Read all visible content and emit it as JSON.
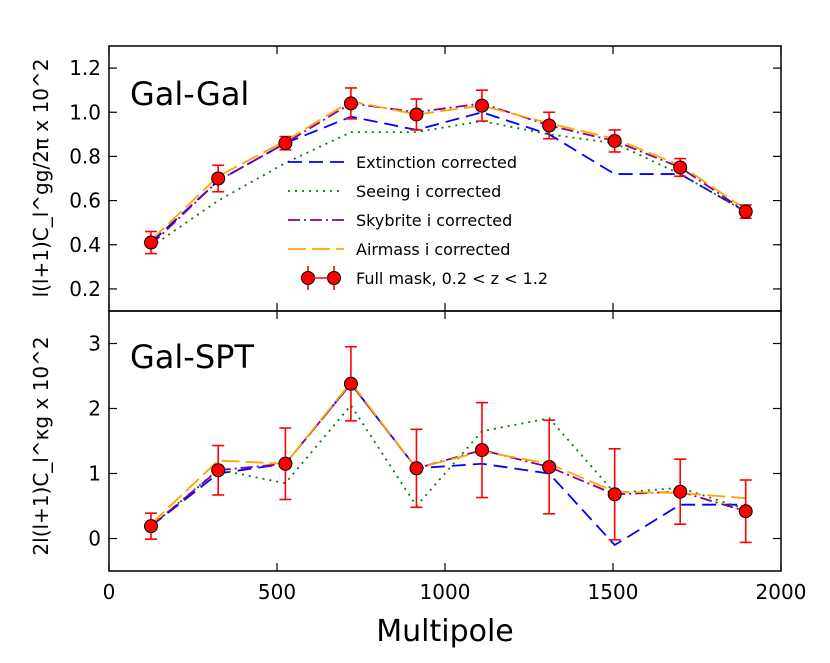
{
  "chart_data": [
    {
      "type": "line",
      "panel_label": "Gal-Gal",
      "ylabel": "l(l+1)C_l^gg/2π x 10^2",
      "xlabel": "",
      "xlim": [
        0,
        2000
      ],
      "ylim": [
        0.1,
        1.3
      ],
      "yticks": [
        0.2,
        0.4,
        0.6,
        0.8,
        1.0,
        1.2
      ],
      "yticklabels": [
        "0.2",
        "0.4",
        "0.6",
        "0.8",
        "1.0",
        "1.2"
      ],
      "legend_position": "lower-right",
      "x": [
        125,
        325,
        525,
        720,
        915,
        1110,
        1310,
        1505,
        1700,
        1895
      ],
      "series": [
        {
          "name": "Extinction corrected",
          "style": "dashed",
          "color": "#0000ff",
          "values": [
            0.41,
            0.69,
            0.86,
            0.98,
            0.92,
            1.0,
            0.9,
            0.72,
            0.72,
            0.55
          ]
        },
        {
          "name": "Seeing i corrected",
          "style": "dotted",
          "color": "#008000",
          "values": [
            0.39,
            0.6,
            0.77,
            0.91,
            0.91,
            0.96,
            0.9,
            0.86,
            0.72,
            0.55
          ]
        },
        {
          "name": "Skybrite i corrected",
          "style": "dashdot",
          "color": "#8b008b",
          "values": [
            0.4,
            0.69,
            0.86,
            1.04,
            1.0,
            1.04,
            0.94,
            0.87,
            0.75,
            0.55
          ]
        },
        {
          "name": "Airmass i corrected",
          "style": "longdash",
          "color": "#ffa500",
          "values": [
            0.42,
            0.71,
            0.87,
            1.05,
            0.99,
            1.03,
            0.95,
            0.88,
            0.76,
            0.56
          ]
        },
        {
          "name": "Full mask, 0.2 < z < 1.2",
          "style": "errorbar",
          "color": "#ff0000",
          "values": [
            0.41,
            0.7,
            0.86,
            1.04,
            0.99,
            1.03,
            0.94,
            0.87,
            0.75,
            0.55
          ],
          "errors": [
            0.05,
            0.06,
            0.03,
            0.07,
            0.07,
            0.07,
            0.06,
            0.05,
            0.04,
            0.03
          ]
        }
      ]
    },
    {
      "type": "line",
      "panel_label": "Gal-SPT",
      "ylabel": "2l(l+1)C_l^κg x 10^2",
      "xlabel": "Multipole",
      "xlim": [
        0,
        2000
      ],
      "ylim": [
        -0.5,
        3.5
      ],
      "xticks": [
        0,
        500,
        1000,
        1500,
        2000
      ],
      "xticklabels": [
        "0",
        "500",
        "1000",
        "1500",
        "2000"
      ],
      "yticks": [
        0,
        1,
        2,
        3
      ],
      "yticklabels": [
        "0",
        "1",
        "2",
        "3"
      ],
      "x": [
        125,
        325,
        525,
        720,
        915,
        1110,
        1310,
        1505,
        1700,
        1895
      ],
      "series": [
        {
          "name": "Extinction corrected",
          "style": "dashed",
          "color": "#0000ff",
          "values": [
            0.19,
            1.0,
            1.15,
            2.38,
            1.08,
            1.15,
            1.0,
            -0.1,
            0.52,
            0.52
          ]
        },
        {
          "name": "Seeing i corrected",
          "style": "dotted",
          "color": "#008000",
          "values": [
            0.19,
            1.06,
            0.85,
            2.05,
            0.5,
            1.65,
            1.85,
            0.7,
            0.78,
            0.45
          ]
        },
        {
          "name": "Skybrite i corrected",
          "style": "dashdot",
          "color": "#8b008b",
          "values": [
            0.19,
            1.05,
            1.15,
            2.38,
            1.08,
            1.36,
            1.1,
            0.68,
            0.72,
            0.42
          ]
        },
        {
          "name": "Airmass i corrected",
          "style": "longdash",
          "color": "#ffa500",
          "values": [
            0.22,
            1.2,
            1.15,
            2.4,
            1.08,
            1.34,
            1.15,
            0.72,
            0.7,
            0.62
          ]
        },
        {
          "name": "Full mask, 0.2 < z < 1.2",
          "style": "errorbar",
          "color": "#ff0000",
          "values": [
            0.19,
            1.05,
            1.15,
            2.38,
            1.08,
            1.36,
            1.1,
            0.68,
            0.72,
            0.42
          ],
          "errors": [
            0.2,
            0.38,
            0.55,
            0.57,
            0.6,
            0.73,
            0.72,
            0.7,
            0.5,
            0.48
          ]
        }
      ]
    }
  ]
}
